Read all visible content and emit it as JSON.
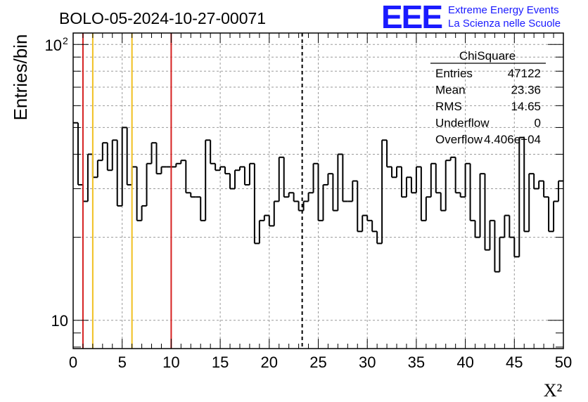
{
  "title": "BOLO-05-2024-10-27-00071",
  "logo": {
    "mark": "EEE",
    "line1": "Extreme Energy Events",
    "line2": "La Scienza nelle Scuole",
    "color": "#1a1aff"
  },
  "stats_box": {
    "title": "ChiSquare",
    "rows": [
      {
        "label": "Entries",
        "value": "47122"
      },
      {
        "label": "Mean",
        "value": "23.36"
      },
      {
        "label": "RMS",
        "value": "14.65"
      },
      {
        "label": "Underflow",
        "value": "0"
      },
      {
        "label": "Overflow",
        "value": "4.406e+04"
      }
    ]
  },
  "chart_data": {
    "type": "histogram",
    "title": "BOLO-05-2024-10-27-00071",
    "xlabel": "X²",
    "ylabel": "Entries/bin",
    "xlim": [
      0,
      50
    ],
    "ylim": [
      7.9,
      110
    ],
    "yscale": "log",
    "x_ticks": [
      0,
      5,
      10,
      15,
      20,
      25,
      30,
      35,
      40,
      45,
      50
    ],
    "y_tick_labels": [
      {
        "value": 10,
        "label": "10"
      },
      {
        "value": 100,
        "label": "10²"
      }
    ],
    "grid": true,
    "bin_width": 0.5,
    "counts": [
      52,
      31,
      27,
      40,
      33,
      38,
      44,
      35,
      45,
      26,
      50,
      31,
      36,
      23,
      26,
      37,
      44,
      34,
      36,
      36,
      36,
      37,
      38,
      29,
      28,
      28,
      23,
      45,
      37,
      35,
      36,
      34,
      30,
      35,
      36,
      31,
      37,
      19,
      23,
      24,
      22,
      27,
      39,
      28,
      29,
      27,
      25,
      27,
      29,
      37,
      23,
      31,
      34,
      25,
      40,
      27,
      27,
      32,
      21,
      24,
      23,
      21,
      19,
      45,
      36,
      33,
      36,
      28,
      33,
      29,
      36,
      23,
      28,
      37,
      29,
      25,
      38,
      39,
      29,
      28,
      37,
      23,
      20,
      34,
      18,
      23,
      15,
      20,
      24,
      20,
      17,
      46,
      21,
      34,
      30,
      32,
      28,
      21,
      27,
      32
    ],
    "vlines": [
      {
        "x": 1,
        "color": "#d62020",
        "style": "solid"
      },
      {
        "x": 2,
        "color": "#f0c020",
        "style": "solid"
      },
      {
        "x": 6,
        "color": "#f0c020",
        "style": "solid"
      },
      {
        "x": 10,
        "color": "#d62020",
        "style": "solid"
      },
      {
        "x": 23.36,
        "color": "#000000",
        "style": "dashed"
      }
    ]
  }
}
